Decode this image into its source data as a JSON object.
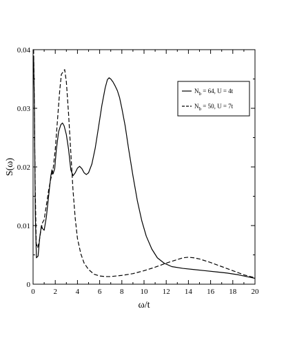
{
  "chart_data": {
    "type": "line",
    "title": "",
    "xlabel": "ω/t",
    "ylabel": "S(ω)",
    "xlim": [
      0,
      20
    ],
    "ylim": [
      0,
      0.04
    ],
    "x_ticks": [
      0,
      2,
      4,
      6,
      8,
      10,
      12,
      14,
      16,
      18,
      20
    ],
    "x_tick_labels": [
      "0",
      "2",
      "4",
      "6",
      "8",
      "10",
      "12",
      "14",
      "16",
      "18",
      "20"
    ],
    "y_ticks": [
      0,
      0.01,
      0.02,
      0.03,
      0.04
    ],
    "y_tick_labels": [
      "0",
      "0.01",
      "0.02",
      "0.03",
      "0.04"
    ],
    "grid": false,
    "legend_position": "top-right",
    "series": [
      {
        "name_parts": [
          "N",
          "b",
          " = 64, U = 4t"
        ],
        "style": "solid",
        "color": "#000000",
        "points": [
          [
            0.05,
            0.039
          ],
          [
            0.12,
            0.03
          ],
          [
            0.2,
            0.012
          ],
          [
            0.3,
            0.0045
          ],
          [
            0.45,
            0.0048
          ],
          [
            0.6,
            0.008
          ],
          [
            0.75,
            0.01
          ],
          [
            0.85,
            0.0095
          ],
          [
            1.0,
            0.0092
          ],
          [
            1.2,
            0.0115
          ],
          [
            1.4,
            0.015
          ],
          [
            1.6,
            0.0185
          ],
          [
            1.7,
            0.0195
          ],
          [
            1.8,
            0.0188
          ],
          [
            1.95,
            0.0197
          ],
          [
            2.1,
            0.023
          ],
          [
            2.3,
            0.026
          ],
          [
            2.5,
            0.0272
          ],
          [
            2.65,
            0.0275
          ],
          [
            2.8,
            0.027
          ],
          [
            3.0,
            0.0255
          ],
          [
            3.2,
            0.023
          ],
          [
            3.4,
            0.0195
          ],
          [
            3.6,
            0.0185
          ],
          [
            3.8,
            0.019
          ],
          [
            4.0,
            0.0198
          ],
          [
            4.2,
            0.0201
          ],
          [
            4.4,
            0.0197
          ],
          [
            4.6,
            0.019
          ],
          [
            4.8,
            0.0187
          ],
          [
            5.0,
            0.019
          ],
          [
            5.3,
            0.0205
          ],
          [
            5.6,
            0.0232
          ],
          [
            5.9,
            0.0268
          ],
          [
            6.2,
            0.0305
          ],
          [
            6.5,
            0.0335
          ],
          [
            6.7,
            0.0349
          ],
          [
            6.85,
            0.0352
          ],
          [
            7.0,
            0.035
          ],
          [
            7.2,
            0.0345
          ],
          [
            7.4,
            0.0338
          ],
          [
            7.6,
            0.033
          ],
          [
            7.8,
            0.0318
          ],
          [
            8.0,
            0.03
          ],
          [
            8.3,
            0.027
          ],
          [
            8.6,
            0.0232
          ],
          [
            9.0,
            0.0185
          ],
          [
            9.4,
            0.0142
          ],
          [
            9.8,
            0.0108
          ],
          [
            10.2,
            0.0082
          ],
          [
            10.7,
            0.006
          ],
          [
            11.2,
            0.0045
          ],
          [
            11.8,
            0.0036
          ],
          [
            12.5,
            0.003
          ],
          [
            13.5,
            0.0027
          ],
          [
            14.5,
            0.0025
          ],
          [
            15.5,
            0.0023
          ],
          [
            16.5,
            0.0021
          ],
          [
            17.5,
            0.0019
          ],
          [
            18.5,
            0.0016
          ],
          [
            19.5,
            0.0012
          ],
          [
            20.0,
            0.001
          ]
        ]
      },
      {
        "name_parts": [
          "N",
          "b",
          " = 50, U = 7t"
        ],
        "style": "dashed",
        "color": "#000000",
        "points": [
          [
            0.05,
            0.04
          ],
          [
            0.1,
            0.033
          ],
          [
            0.18,
            0.018
          ],
          [
            0.28,
            0.007
          ],
          [
            0.4,
            0.0062
          ],
          [
            0.55,
            0.0072
          ],
          [
            0.7,
            0.0092
          ],
          [
            0.85,
            0.0105
          ],
          [
            1.0,
            0.011
          ],
          [
            1.2,
            0.0135
          ],
          [
            1.4,
            0.016
          ],
          [
            1.6,
            0.018
          ],
          [
            1.8,
            0.0195
          ],
          [
            2.0,
            0.023
          ],
          [
            2.2,
            0.028
          ],
          [
            2.4,
            0.033
          ],
          [
            2.55,
            0.0358
          ],
          [
            2.7,
            0.0362
          ],
          [
            2.85,
            0.0366
          ],
          [
            3.0,
            0.0345
          ],
          [
            3.2,
            0.029
          ],
          [
            3.4,
            0.0225
          ],
          [
            3.6,
            0.016
          ],
          [
            3.8,
            0.0112
          ],
          [
            4.0,
            0.0078
          ],
          [
            4.3,
            0.0052
          ],
          [
            4.6,
            0.0036
          ],
          [
            5.0,
            0.0025
          ],
          [
            5.5,
            0.0017
          ],
          [
            6.0,
            0.0014
          ],
          [
            6.5,
            0.0013
          ],
          [
            7.0,
            0.0013
          ],
          [
            8.0,
            0.0015
          ],
          [
            9.0,
            0.0018
          ],
          [
            10.0,
            0.0023
          ],
          [
            11.0,
            0.0029
          ],
          [
            12.0,
            0.0036
          ],
          [
            13.0,
            0.0042
          ],
          [
            13.5,
            0.0045
          ],
          [
            14.0,
            0.0046
          ],
          [
            14.5,
            0.0045
          ],
          [
            15.0,
            0.0043
          ],
          [
            16.0,
            0.0037
          ],
          [
            17.0,
            0.003
          ],
          [
            18.0,
            0.0023
          ],
          [
            19.0,
            0.0016
          ],
          [
            20.0,
            0.0011
          ]
        ]
      }
    ]
  }
}
